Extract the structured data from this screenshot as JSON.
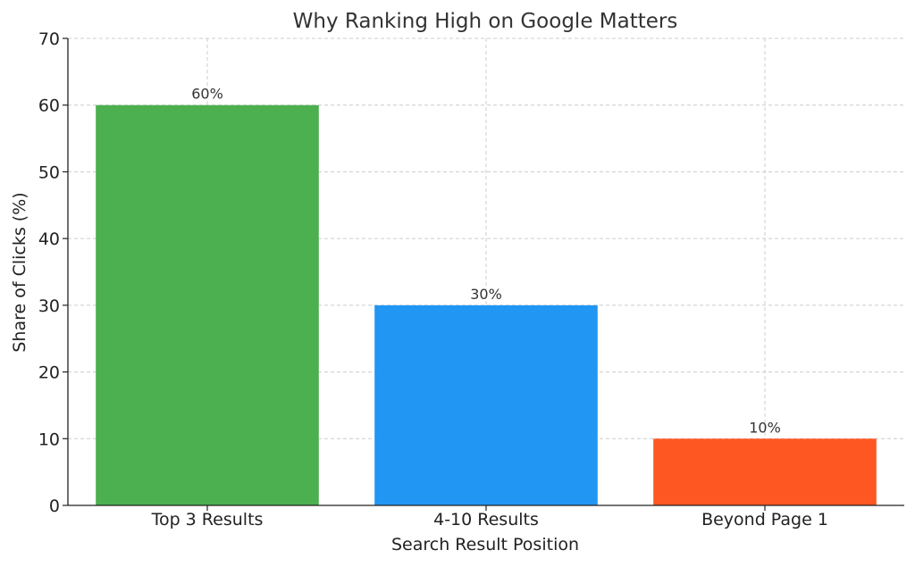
{
  "chart_data": {
    "type": "bar",
    "title": "Why Ranking High on Google Matters",
    "xlabel": "Search Result Position",
    "ylabel": "Share of Clicks (%)",
    "categories": [
      "Top 3 Results",
      "4-10 Results",
      "Beyond Page 1"
    ],
    "values": [
      60,
      30,
      10
    ],
    "data_labels": [
      "60%",
      "30%",
      "10%"
    ],
    "colors": [
      "#4CAF50",
      "#2196F3",
      "#FF5722"
    ],
    "ylim": [
      0,
      70
    ],
    "yticks": [
      0,
      10,
      20,
      30,
      40,
      50,
      60,
      70
    ],
    "grid": true
  }
}
